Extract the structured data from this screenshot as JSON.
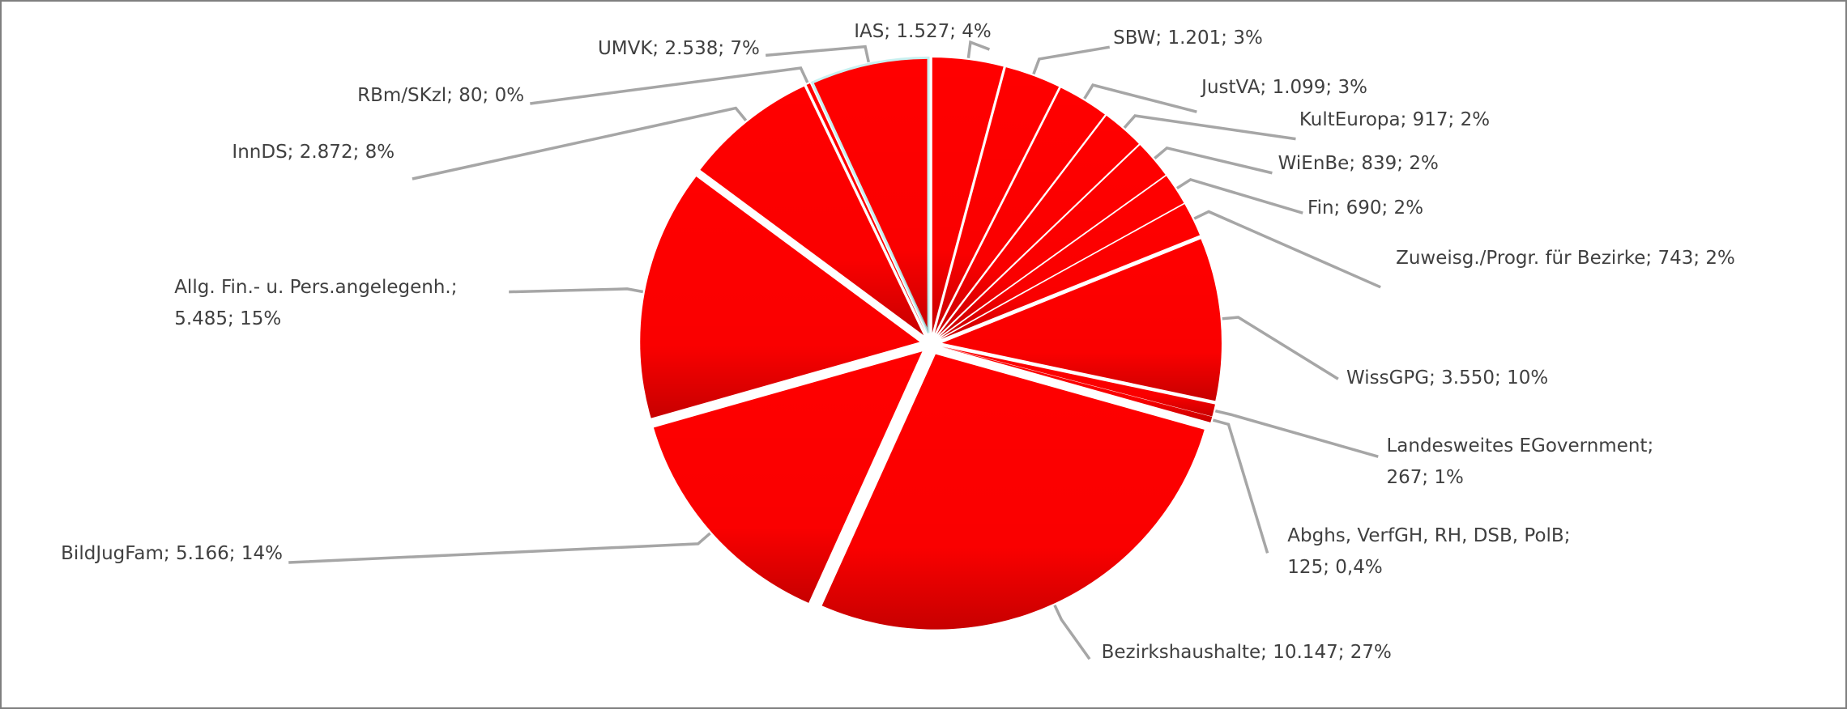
{
  "chart_data": {
    "type": "pie",
    "values": [
      1527,
      1201,
      1099,
      917,
      839,
      690,
      743,
      3550,
      267,
      125,
      10147,
      5166,
      5485,
      2872,
      80,
      2538
    ],
    "value_labels": [
      "IAS; 1.527; 4%",
      "SBW; 1.201; 3%",
      "JustVA; 1.099; 3%",
      "KultEuropa; 917; 2%",
      "WiEnBe; 839; 2%",
      "Fin; 690; 2%",
      "Zuweisg./Progr. für Bezirke; 743; 2%",
      "WissGPG; 3.550; 10%",
      "Landesweites EGovernment; 267; 1%",
      "Abghs, VerfGH, RH, DSB, PolB; 125; 0,4%",
      "Bezirkshaushalte; 10.147; 27%",
      "BildJugFam; 5.166; 14%",
      "Allg. Fin.- u. Pers.angelegenh.; 5.485; 15%",
      "InnDS; 2.872; 8%",
      "RBm/SKzl; 80; 0%",
      "UMVK; 2.538; 7%"
    ],
    "color": "#ff0000"
  }
}
